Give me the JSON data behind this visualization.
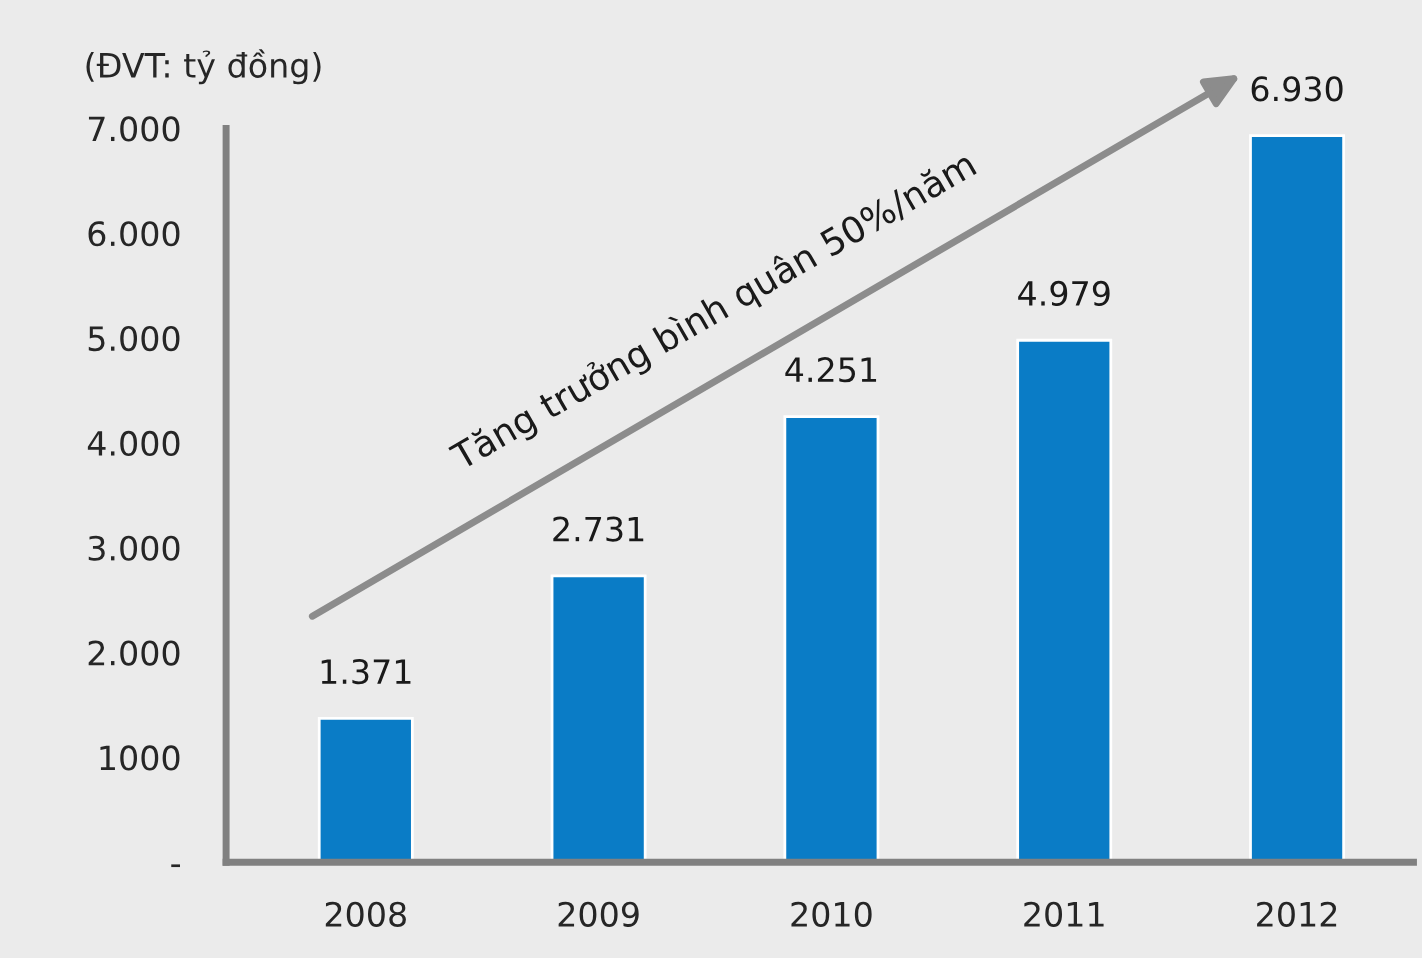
{
  "chart_data": {
    "type": "bar",
    "ylabel": "(ĐVT: tỷ đồng)",
    "categories": [
      "2008",
      "2009",
      "2010",
      "2011",
      "2012"
    ],
    "values": [
      1371,
      2731,
      4251,
      4979,
      6930
    ],
    "value_labels": [
      "1.371",
      "2.731",
      "4.251",
      "4.979",
      "6.930"
    ],
    "color": "#0a7cc6",
    "ylim": [
      0,
      7000
    ],
    "yticks": [
      {
        "value": 0,
        "label": "-"
      },
      1000,
      {
        "value": 2000,
        "label": "2.000"
      },
      {
        "value": 3000,
        "label": "3.000"
      },
      {
        "value": 4000,
        "label": "4.000"
      },
      {
        "value": 5000,
        "label": "5.000"
      },
      {
        "value": 6000,
        "label": "6.000"
      },
      {
        "value": 7000,
        "label": "7.000"
      }
    ],
    "annotations": [
      "Tăng trưởng bình quân 50%/năm"
    ],
    "grid": false,
    "legend": false
  }
}
